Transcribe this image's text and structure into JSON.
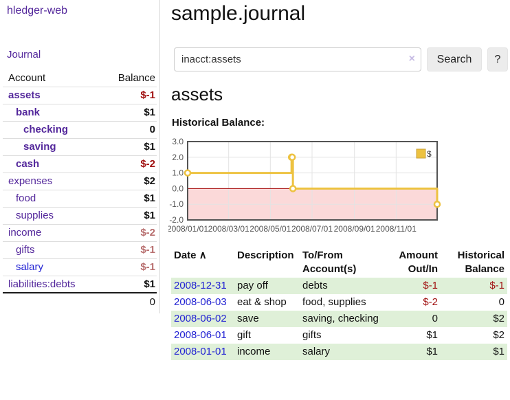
{
  "sidebar": {
    "brand": "hledger-web",
    "journal_link": "Journal",
    "accounts_header": {
      "account": "Account",
      "balance": "Balance"
    },
    "accounts": [
      {
        "label": "assets",
        "row_class": "bold",
        "name_class": "lvl0",
        "balance": "$-1",
        "bal_class": "neg-strong"
      },
      {
        "label": "bank",
        "row_class": "bold",
        "name_class": "lvl1",
        "balance": "$1",
        "bal_class": ""
      },
      {
        "label": "checking",
        "row_class": "bold",
        "name_class": "lvl2",
        "balance": "0",
        "bal_class": ""
      },
      {
        "label": "saving",
        "row_class": "bold",
        "name_class": "lvl2",
        "balance": "$1",
        "bal_class": ""
      },
      {
        "label": "cash",
        "row_class": "bold",
        "name_class": "lvl1",
        "balance": "$-2",
        "bal_class": "neg-strong"
      },
      {
        "label": "expenses",
        "row_class": "",
        "name_class": "lvl0",
        "balance": "$2",
        "bal_class": ""
      },
      {
        "label": "food",
        "row_class": "",
        "name_class": "lvl1",
        "balance": "$1",
        "bal_class": ""
      },
      {
        "label": "supplies",
        "row_class": "",
        "name_class": "lvl1",
        "balance": "$1",
        "bal_class": ""
      },
      {
        "label": "income",
        "row_class": "",
        "name_class": "lvl0",
        "balance": "$-2",
        "bal_class": "neg-soft"
      },
      {
        "label": "gifts",
        "row_class": "",
        "name_class": "lvl1",
        "balance": "$-1",
        "bal_class": "neg-soft"
      },
      {
        "label": "salary",
        "row_class": "blue",
        "name_class": "lvl1",
        "balance": "$-1",
        "bal_class": "neg-soft"
      },
      {
        "label": "liabilities:debts",
        "row_class": "",
        "name_class": "lvl0",
        "balance": "$1",
        "bal_class": ""
      }
    ],
    "total": "0"
  },
  "header": {
    "title": "sample.journal"
  },
  "search": {
    "query": "inacct:assets",
    "clear_label": "×",
    "button_label": "Search",
    "help_label": "?"
  },
  "account_page": {
    "heading": "assets",
    "chart_label": "Historical Balance:"
  },
  "chart_data": {
    "type": "line",
    "title": "Historical Balance",
    "step": true,
    "xrange": [
      "2008-01-01",
      "2008-12-31"
    ],
    "ylim": [
      -2,
      3
    ],
    "yticks": [
      {
        "v": 3,
        "label": "3.0"
      },
      {
        "v": 2,
        "label": "2.0"
      },
      {
        "v": 1,
        "label": "1.0"
      },
      {
        "v": 0,
        "label": "0.0"
      },
      {
        "v": -1,
        "label": "-1.0"
      },
      {
        "v": -2,
        "label": "-2.0"
      }
    ],
    "xticks": [
      {
        "v": "2008-01-01",
        "label": "2008/01/01"
      },
      {
        "v": "2008-03-01",
        "label": "2008/03/01"
      },
      {
        "v": "2008-05-01",
        "label": "2008/05/01"
      },
      {
        "v": "2008-07-01",
        "label": "2008/07/01"
      },
      {
        "v": "2008-09-01",
        "label": "2008/09/01"
      },
      {
        "v": "2008-11-01",
        "label": "2008/11/01"
      }
    ],
    "series": [
      {
        "name": "$",
        "color": "#edc240",
        "points": [
          [
            "2008-01-01",
            1
          ],
          [
            "2008-06-01",
            2
          ],
          [
            "2008-06-02",
            2
          ],
          [
            "2008-06-03",
            0
          ],
          [
            "2008-12-31",
            -1
          ]
        ]
      }
    ],
    "legend_position": "top-right",
    "colors": {
      "grid": "#e3e3e3",
      "frame": "#545454",
      "negative_region": "#fbd9d9",
      "zero_line": "#a40000",
      "legend_swatch_border": "#c9a23a"
    }
  },
  "table": {
    "headers": {
      "date": "Date",
      "sort_icon": "∧",
      "description": "Description",
      "accounts": "To/From Account(s)",
      "amount": "Amount Out/In",
      "balance": "Historical Balance"
    },
    "rows": [
      {
        "date": "2008-12-31",
        "description": "pay off",
        "accounts": "debts",
        "amount": "$-1",
        "amount_class": "neg-strong",
        "balance": "$-1",
        "bal_class": "neg-strong"
      },
      {
        "date": "2008-06-03",
        "description": "eat & shop",
        "accounts": "food, supplies",
        "amount": "$-2",
        "amount_class": "neg-strong",
        "balance": "0",
        "bal_class": ""
      },
      {
        "date": "2008-06-02",
        "description": "save",
        "accounts": "saving, checking",
        "amount": "0",
        "amount_class": "",
        "balance": "$2",
        "bal_class": ""
      },
      {
        "date": "2008-06-01",
        "description": "gift",
        "accounts": "gifts",
        "amount": "$1",
        "amount_class": "",
        "balance": "$2",
        "bal_class": ""
      },
      {
        "date": "2008-01-01",
        "description": "income",
        "accounts": "salary",
        "amount": "$1",
        "amount_class": "",
        "balance": "$1",
        "bal_class": ""
      }
    ]
  }
}
